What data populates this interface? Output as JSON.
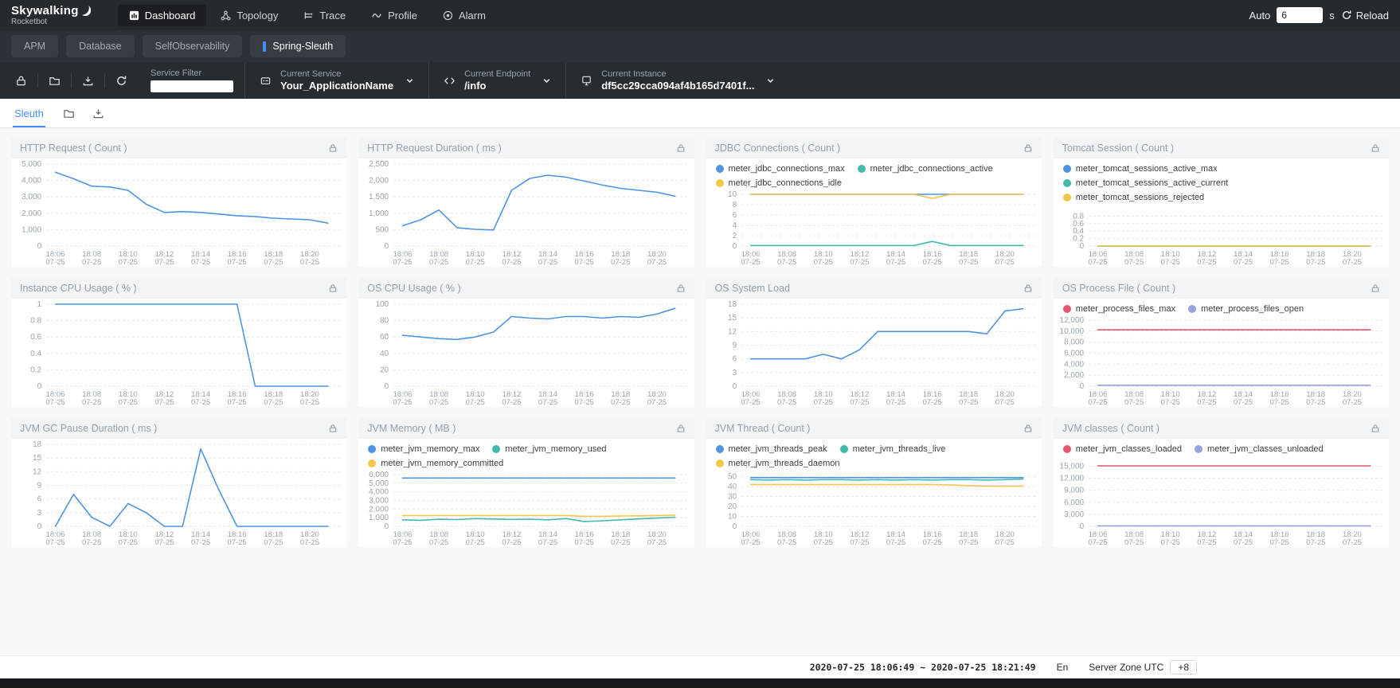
{
  "header": {
    "logo_title": "Skywalking",
    "logo_subtitle": "Rocketbot",
    "nav": [
      {
        "label": "Dashboard",
        "icon": "dashboard-icon",
        "active": true
      },
      {
        "label": "Topology",
        "icon": "topology-icon",
        "active": false
      },
      {
        "label": "Trace",
        "icon": "trace-icon",
        "active": false
      },
      {
        "label": "Profile",
        "icon": "profile-icon",
        "active": false
      },
      {
        "label": "Alarm",
        "icon": "alarm-icon",
        "active": false
      }
    ],
    "auto_label": "Auto",
    "auto_value": "6",
    "auto_unit": "s",
    "reload_label": "Reload",
    "reload_icon": "reload-icon"
  },
  "subnav": {
    "tabs": [
      {
        "label": "APM",
        "active": false
      },
      {
        "label": "Database",
        "active": false
      },
      {
        "label": "SelfObservability",
        "active": false
      },
      {
        "label": "Spring-Sleuth",
        "active": true
      }
    ]
  },
  "toolbar": {
    "icons": [
      "lock-icon",
      "folder-icon",
      "download-icon",
      "refresh-icon"
    ],
    "service_filter_label": "Service Filter",
    "service_filter_value": "",
    "selectors": [
      {
        "label": "Current Service",
        "value": "Your_ApplicationName",
        "icon": "service-icon"
      },
      {
        "label": "Current Endpoint",
        "value": "/info",
        "icon": "endpoint-icon"
      },
      {
        "label": "Current Instance",
        "value": "df5cc29cca094af4b165d7401f...",
        "icon": "instance-icon"
      }
    ]
  },
  "tabsbar": {
    "active_tab": "Sleuth",
    "icons": [
      "folder-icon",
      "download-icon"
    ]
  },
  "footer": {
    "time_range": "2020-07-25 18:06:49 ~ 2020-07-25 18:21:49",
    "lang": "En",
    "server_zone_label": "Server Zone UTC",
    "server_zone_value": "+8"
  },
  "colors": {
    "accent_blue": "#448dfe",
    "series_blue": "#4f94e0",
    "series_teal": "#43b8ad",
    "series_yellow": "#f6c54a",
    "series_red": "#e4596e",
    "series_purple": "#97a2dd"
  },
  "chart_data": [
    {
      "type": "line",
      "title": "HTTP Request ( Count )",
      "yticks": [
        0,
        1000,
        2000,
        3000,
        4000,
        5000
      ],
      "ymax": 5000,
      "categories": [
        "18:06",
        "18:08",
        "18:10",
        "18:12",
        "18:14",
        "18:16",
        "18:18",
        "18:20"
      ],
      "date_label": "07-25",
      "legend_rows": [],
      "series": [
        {
          "name": "",
          "color": "#4f94e0",
          "values": [
            4500,
            4100,
            3650,
            3600,
            3400,
            2550,
            2050,
            2100,
            2050,
            1950,
            1850,
            1800,
            1700,
            1650,
            1600,
            1400
          ]
        }
      ]
    },
    {
      "type": "line",
      "title": "HTTP Request Duration ( ms )",
      "yticks": [
        0,
        500,
        1000,
        1500,
        2000,
        2500
      ],
      "ymax": 2500,
      "categories": [
        "18:06",
        "18:08",
        "18:10",
        "18:12",
        "18:14",
        "18:16",
        "18:18",
        "18:20"
      ],
      "date_label": "07-25",
      "legend_rows": [],
      "series": [
        {
          "name": "",
          "color": "#4f94e0",
          "values": [
            620,
            800,
            1100,
            560,
            510,
            490,
            1700,
            2060,
            2160,
            2100,
            1980,
            1860,
            1760,
            1700,
            1640,
            1520
          ]
        }
      ]
    },
    {
      "type": "line",
      "title": "JDBC Connections ( Count )",
      "yticks": [
        0,
        2,
        4,
        6,
        8,
        10
      ],
      "ymax": 10,
      "categories": [
        "18:06",
        "18:08",
        "18:10",
        "18:12",
        "18:14",
        "18:16",
        "18:18",
        "18:20"
      ],
      "date_label": "07-25",
      "legend_rows": [
        [
          "meter_jdbc_connections_max",
          "meter_jdbc_connections_active"
        ],
        [
          "meter_jdbc_connections_idle"
        ]
      ],
      "series": [
        {
          "name": "meter_jdbc_connections_max",
          "color": "#4f94e0",
          "values": [
            10,
            10,
            10,
            10,
            10,
            10,
            10,
            10,
            10,
            10,
            10,
            10,
            10,
            10,
            10,
            10
          ]
        },
        {
          "name": "meter_jdbc_connections_idle",
          "color": "#f6c54a",
          "values": [
            10,
            10,
            10,
            10,
            10,
            10,
            10,
            10,
            10,
            10,
            9.2,
            10,
            10,
            10,
            10,
            10
          ]
        },
        {
          "name": "meter_jdbc_connections_active",
          "color": "#43b8ad",
          "values": [
            0.1,
            0.1,
            0.1,
            0.1,
            0.1,
            0.1,
            0.1,
            0.1,
            0.1,
            0.1,
            0.9,
            0.1,
            0.1,
            0.1,
            0.1,
            0.1
          ]
        }
      ]
    },
    {
      "type": "line",
      "title": "Tomcat Session ( Count )",
      "yticks": [
        0,
        0.2,
        0.4,
        0.6,
        0.8
      ],
      "ymax": 1,
      "categories": [
        "18:06",
        "18:08",
        "18:10",
        "18:12",
        "18:14",
        "18:16",
        "18:18",
        "18:20"
      ],
      "date_label": "07-25",
      "legend_rows": [
        [
          "meter_tomcat_sessions_active_max"
        ],
        [
          "meter_tomcat_sessions_active_current"
        ],
        [
          "meter_tomcat_sessions_rejected"
        ]
      ],
      "series": [
        {
          "name": "meter_tomcat_sessions_active_max",
          "color": "#4f94e0",
          "values": [
            0,
            0,
            0,
            0,
            0,
            0,
            0,
            0,
            0,
            0,
            0,
            0,
            0,
            0,
            0,
            0
          ]
        },
        {
          "name": "meter_tomcat_sessions_active_current",
          "color": "#43b8ad",
          "values": [
            0,
            0,
            0,
            0,
            0,
            0,
            0,
            0,
            0,
            0,
            0,
            0,
            0,
            0,
            0,
            0
          ]
        },
        {
          "name": "meter_tomcat_sessions_rejected",
          "color": "#f6c54a",
          "values": [
            0,
            0,
            0,
            0,
            0,
            0,
            0,
            0,
            0,
            0,
            0,
            0,
            0,
            0,
            0,
            0
          ]
        }
      ]
    },
    {
      "type": "line",
      "title": "Instance CPU Usage ( % )",
      "yticks": [
        0,
        0.2,
        0.4,
        0.6,
        0.8,
        1
      ],
      "ymax": 1,
      "categories": [
        "18:06",
        "18:08",
        "18:10",
        "18:12",
        "18:14",
        "18:16",
        "18:18",
        "18:20"
      ],
      "date_label": "07-25",
      "legend_rows": [],
      "series": [
        {
          "name": "",
          "color": "#4f94e0",
          "values": [
            1,
            1,
            1,
            1,
            1,
            1,
            1,
            1,
            1,
            1,
            1,
            0,
            0,
            0,
            0,
            0
          ]
        }
      ]
    },
    {
      "type": "line",
      "title": "OS CPU Usage ( % )",
      "yticks": [
        0,
        20,
        40,
        60,
        80,
        100
      ],
      "ymax": 100,
      "categories": [
        "18:06",
        "18:08",
        "18:10",
        "18:12",
        "18:14",
        "18:16",
        "18:18",
        "18:20"
      ],
      "date_label": "07-25",
      "legend_rows": [],
      "series": [
        {
          "name": "",
          "color": "#4f94e0",
          "values": [
            62,
            60,
            58,
            57,
            60,
            66,
            85,
            83,
            82,
            85,
            85,
            83,
            85,
            84,
            88,
            95
          ]
        }
      ]
    },
    {
      "type": "line",
      "title": "OS System Load",
      "yticks": [
        0,
        3,
        6,
        9,
        12,
        15,
        18
      ],
      "ymax": 18,
      "categories": [
        "18:06",
        "18:08",
        "18:10",
        "18:12",
        "18:14",
        "18:16",
        "18:18",
        "18:20"
      ],
      "date_label": "07-25",
      "legend_rows": [],
      "series": [
        {
          "name": "",
          "color": "#4f94e0",
          "values": [
            6,
            6,
            6,
            6,
            7,
            6,
            8,
            12,
            12,
            12,
            12,
            12,
            12,
            11.5,
            16.5,
            17
          ]
        }
      ]
    },
    {
      "type": "line",
      "title": "OS Process File ( Count )",
      "yticks": [
        0,
        2000,
        4000,
        6000,
        8000,
        10000,
        12000
      ],
      "ymax": 12000,
      "categories": [
        "18:06",
        "18:08",
        "18:10",
        "18:12",
        "18:14",
        "18:16",
        "18:18",
        "18:20"
      ],
      "date_label": "07-25",
      "legend_rows": [
        [
          "meter_process_files_max",
          "meter_process_files_open"
        ]
      ],
      "series": [
        {
          "name": "meter_process_files_max",
          "color": "#e4596e",
          "values": [
            10240,
            10240,
            10240,
            10240,
            10240,
            10240,
            10240,
            10240,
            10240,
            10240,
            10240,
            10240,
            10240,
            10240,
            10240,
            10240
          ]
        },
        {
          "name": "meter_process_files_open",
          "color": "#97a2dd",
          "values": [
            180,
            180,
            180,
            180,
            180,
            180,
            180,
            180,
            180,
            180,
            180,
            180,
            180,
            180,
            180,
            180
          ]
        }
      ]
    },
    {
      "type": "line",
      "title": "JVM GC Pause Duration ( ms )",
      "yticks": [
        0,
        3,
        6,
        9,
        12,
        15,
        18
      ],
      "ymax": 18,
      "categories": [
        "18:06",
        "18:08",
        "18:10",
        "18:12",
        "18:14",
        "18:16",
        "18:18",
        "18:20"
      ],
      "date_label": "07-25",
      "legend_rows": [],
      "series": [
        {
          "name": "",
          "color": "#4f94e0",
          "values": [
            0,
            7,
            2,
            0,
            5,
            3,
            0,
            0,
            17,
            8,
            0,
            0,
            0,
            0,
            0,
            0
          ]
        }
      ]
    },
    {
      "type": "line",
      "title": "JVM Memory ( MB )",
      "yticks": [
        0,
        1000,
        2000,
        3000,
        4000,
        5000,
        6000
      ],
      "ymax": 6000,
      "categories": [
        "18:06",
        "18:08",
        "18:10",
        "18:12",
        "18:14",
        "18:16",
        "18:18",
        "18:20"
      ],
      "date_label": "07-25",
      "legend_rows": [
        [
          "meter_jvm_memory_max",
          "meter_jvm_memory_used"
        ],
        [
          "meter_jvm_memory_committed"
        ]
      ],
      "series": [
        {
          "name": "meter_jvm_memory_max",
          "color": "#4f94e0",
          "values": [
            5600,
            5600,
            5600,
            5600,
            5600,
            5600,
            5600,
            5600,
            5600,
            5600,
            5600,
            5600,
            5600,
            5600,
            5600,
            5600
          ]
        },
        {
          "name": "meter_jvm_memory_committed",
          "color": "#f6c54a",
          "values": [
            1260,
            1260,
            1260,
            1260,
            1260,
            1260,
            1260,
            1260,
            1260,
            1260,
            1160,
            1160,
            1200,
            1220,
            1260,
            1300
          ]
        },
        {
          "name": "meter_jvm_memory_used",
          "color": "#43b8ad",
          "values": [
            750,
            700,
            820,
            780,
            900,
            850,
            800,
            830,
            760,
            900,
            560,
            650,
            760,
            860,
            960,
            1060
          ]
        }
      ]
    },
    {
      "type": "line",
      "title": "JVM Thread ( Count )",
      "yticks": [
        0,
        10,
        20,
        30,
        40,
        50
      ],
      "ymax": 52,
      "categories": [
        "18:06",
        "18:08",
        "18:10",
        "18:12",
        "18:14",
        "18:16",
        "18:18",
        "18:20"
      ],
      "date_label": "07-25",
      "legend_rows": [
        [
          "meter_jvm_threads_peak",
          "meter_jvm_threads_live"
        ],
        [
          "meter_jvm_threads_daemon"
        ]
      ],
      "series": [
        {
          "name": "meter_jvm_threads_peak",
          "color": "#4f94e0",
          "values": [
            49,
            49,
            49,
            49,
            49,
            49,
            49,
            49,
            49,
            49,
            49,
            49,
            49,
            49,
            49,
            49
          ]
        },
        {
          "name": "meter_jvm_threads_live",
          "color": "#43b8ad",
          "values": [
            47,
            46.5,
            47,
            46.5,
            47,
            47,
            46.5,
            47,
            46.5,
            47,
            46.5,
            47,
            47,
            46.5,
            47,
            47.5
          ]
        },
        {
          "name": "meter_jvm_threads_daemon",
          "color": "#f6c54a",
          "values": [
            42,
            42,
            42,
            42,
            42,
            42,
            42,
            42,
            42,
            42,
            42,
            41.5,
            41,
            40.5,
            40.5,
            40.5
          ]
        }
      ]
    },
    {
      "type": "line",
      "title": "JVM classes ( Count )",
      "yticks": [
        0,
        3000,
        6000,
        9000,
        12000,
        15000
      ],
      "ymax": 16500,
      "categories": [
        "18:06",
        "18:08",
        "18:10",
        "18:12",
        "18:14",
        "18:16",
        "18:18",
        "18:20"
      ],
      "date_label": "07-25",
      "legend_rows": [
        [
          "meter_jvm_classes_loaded",
          "meter_jvm_classes_unloaded"
        ]
      ],
      "series": [
        {
          "name": "meter_jvm_classes_loaded",
          "color": "#e4596e",
          "values": [
            15100,
            15100,
            15100,
            15100,
            15100,
            15100,
            15100,
            15100,
            15100,
            15100,
            15100,
            15100,
            15100,
            15100,
            15100,
            15100
          ]
        },
        {
          "name": "meter_jvm_classes_unloaded",
          "color": "#97a2dd",
          "values": [
            120,
            120,
            120,
            120,
            120,
            120,
            120,
            120,
            120,
            120,
            120,
            120,
            120,
            120,
            120,
            120
          ]
        }
      ]
    }
  ]
}
